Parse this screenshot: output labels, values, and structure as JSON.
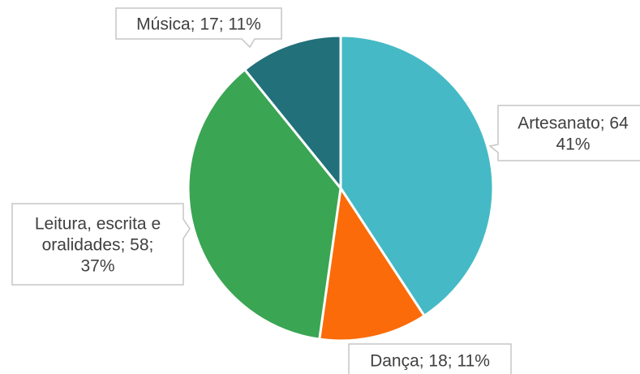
{
  "chart_data": {
    "type": "pie",
    "slices": [
      {
        "label": "Artesanato",
        "value": 64,
        "percent": "41%",
        "color": "#45bac6"
      },
      {
        "label": "Dança",
        "value": 18,
        "percent": "11%",
        "color": "#fb6b09"
      },
      {
        "label": "Leitura, escrita e oralidades",
        "value": 58,
        "percent": "37%",
        "color": "#3aa553"
      },
      {
        "label": "Música",
        "value": 17,
        "percent": "11%",
        "color": "#21707a"
      }
    ],
    "data_labels": [
      {
        "lines": [
          "Artesanato; 64",
          "41%"
        ]
      },
      {
        "lines": [
          "Dança; 18; 11%"
        ]
      },
      {
        "lines": [
          "Leitura, escrita e",
          "oralidades; 58;",
          "37%"
        ]
      },
      {
        "lines": [
          "Música; 17; 11%"
        ]
      }
    ],
    "start_angle": "12 o'clock",
    "direction": "clockwise",
    "legend": "none",
    "label_style": "callout boxes"
  }
}
